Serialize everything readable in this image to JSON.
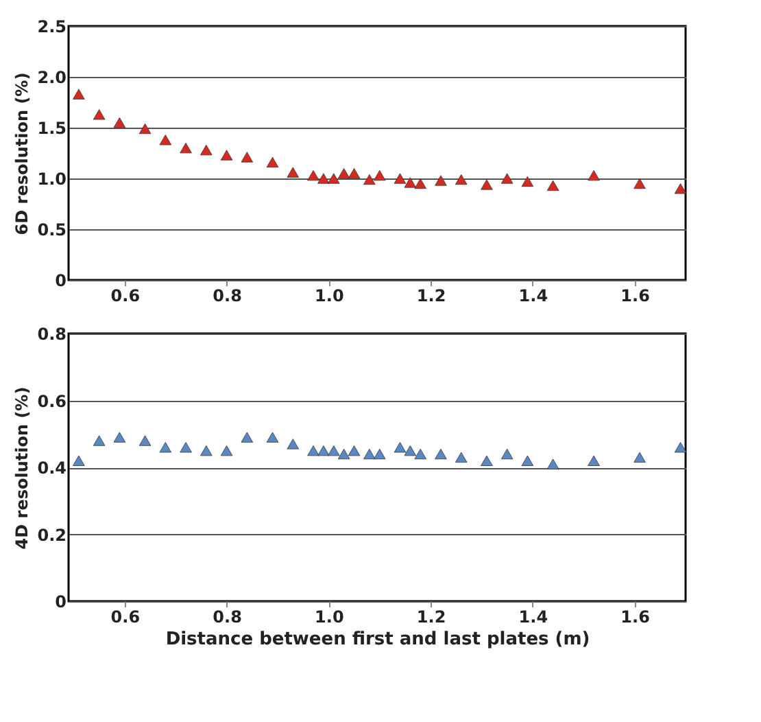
{
  "chart_data": [
    {
      "type": "scatter",
      "ylabel": "6D resolution (%)",
      "marker": "triangle",
      "grid": "y",
      "x": [
        0.51,
        0.55,
        0.59,
        0.64,
        0.68,
        0.72,
        0.76,
        0.8,
        0.84,
        0.89,
        0.93,
        0.97,
        0.99,
        1.01,
        1.03,
        1.05,
        1.08,
        1.1,
        1.14,
        1.16,
        1.18,
        1.22,
        1.26,
        1.31,
        1.35,
        1.39,
        1.44,
        1.52,
        1.61,
        1.69
      ],
      "series": [
        {
          "color": "#d42a22",
          "values": [
            1.83,
            1.63,
            1.55,
            1.49,
            1.38,
            1.3,
            1.28,
            1.23,
            1.21,
            1.16,
            1.06,
            1.03,
            1.0,
            1.0,
            1.05,
            1.05,
            0.99,
            1.03,
            1.0,
            0.96,
            0.95,
            0.98,
            0.99,
            0.94,
            1.0,
            0.97,
            0.93,
            1.03,
            0.95,
            0.9
          ]
        }
      ],
      "xlim": [
        0.49,
        1.7
      ],
      "xticks": [
        0.6,
        0.8,
        {
          "value": 1.0,
          "label": "1.0"
        },
        1.2,
        1.4,
        1.6
      ],
      "ylim": [
        0,
        2.5
      ],
      "yticks": [
        0,
        0.5,
        {
          "value": 1.0,
          "label": "1.0"
        },
        1.5,
        {
          "value": 2.0,
          "label": "2.0"
        },
        2.5
      ]
    },
    {
      "type": "scatter",
      "xlabel": "Distance between first and last plates (m)",
      "ylabel": "4D resolution (%)",
      "marker": "triangle",
      "grid": "y",
      "x": [
        0.51,
        0.55,
        0.59,
        0.64,
        0.68,
        0.72,
        0.76,
        0.8,
        0.84,
        0.89,
        0.93,
        0.97,
        0.99,
        1.01,
        1.03,
        1.05,
        1.08,
        1.1,
        1.14,
        1.16,
        1.18,
        1.22,
        1.26,
        1.31,
        1.35,
        1.39,
        1.44,
        1.52,
        1.61,
        1.69
      ],
      "series": [
        {
          "color": "#5b88c2",
          "values": [
            0.42,
            0.48,
            0.49,
            0.48,
            0.46,
            0.46,
            0.45,
            0.45,
            0.49,
            0.49,
            0.47,
            0.45,
            0.45,
            0.45,
            0.44,
            0.45,
            0.44,
            0.44,
            0.46,
            0.45,
            0.44,
            0.44,
            0.43,
            0.42,
            0.44,
            0.42,
            0.41,
            0.42,
            0.43,
            0.46
          ]
        }
      ],
      "xlim": [
        0.49,
        1.7
      ],
      "xticks": [
        0.6,
        0.8,
        {
          "value": 1.0,
          "label": "1.0"
        },
        1.2,
        1.4,
        1.6
      ],
      "ylim": [
        0,
        0.8
      ],
      "yticks": [
        0,
        0.2,
        0.4,
        0.6,
        0.8
      ]
    }
  ]
}
